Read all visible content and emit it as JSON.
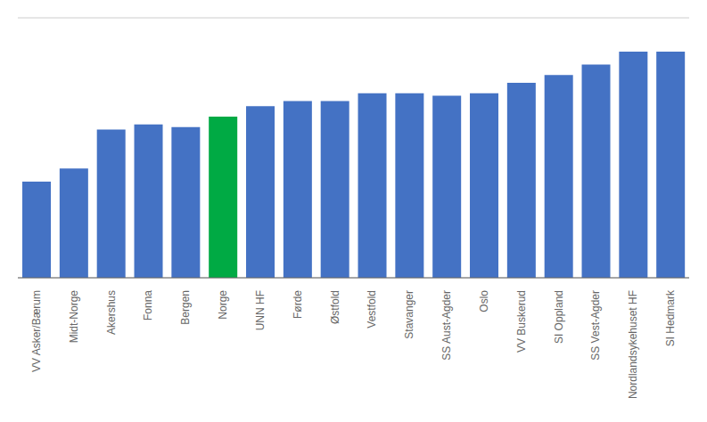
{
  "chart_data": {
    "type": "bar",
    "categories": [
      "VV Asker/Bærum",
      "Midt-Norge",
      "Akershus",
      "Fonna",
      "Bergen",
      "Norge",
      "UNN HF",
      "Førde",
      "Østfold",
      "Vestfold",
      "Stavanger",
      "SS Aust-Agder",
      "Oslo",
      "VV Buskerud",
      "SI Oppland",
      "SS Vest-Agder",
      "Nordlandsykehuset HF",
      "SI Hedmark"
    ],
    "values": [
      37,
      42,
      57,
      59,
      58,
      62,
      66,
      68,
      68,
      71,
      71,
      70,
      71,
      75,
      78,
      82,
      87,
      87
    ],
    "colors": [
      "#4472C4",
      "#4472C4",
      "#4472C4",
      "#4472C4",
      "#4472C4",
      "#00AA44",
      "#4472C4",
      "#4472C4",
      "#4472C4",
      "#4472C4",
      "#4472C4",
      "#4472C4",
      "#4472C4",
      "#4472C4",
      "#4472C4",
      "#4472C4",
      "#4472C4",
      "#4472C4"
    ],
    "ylim": [
      0,
      100
    ],
    "yticks": [
      10,
      20,
      30,
      40,
      50,
      60,
      70,
      80,
      90,
      100
    ],
    "grid": true,
    "tick_labels": "x"
  }
}
